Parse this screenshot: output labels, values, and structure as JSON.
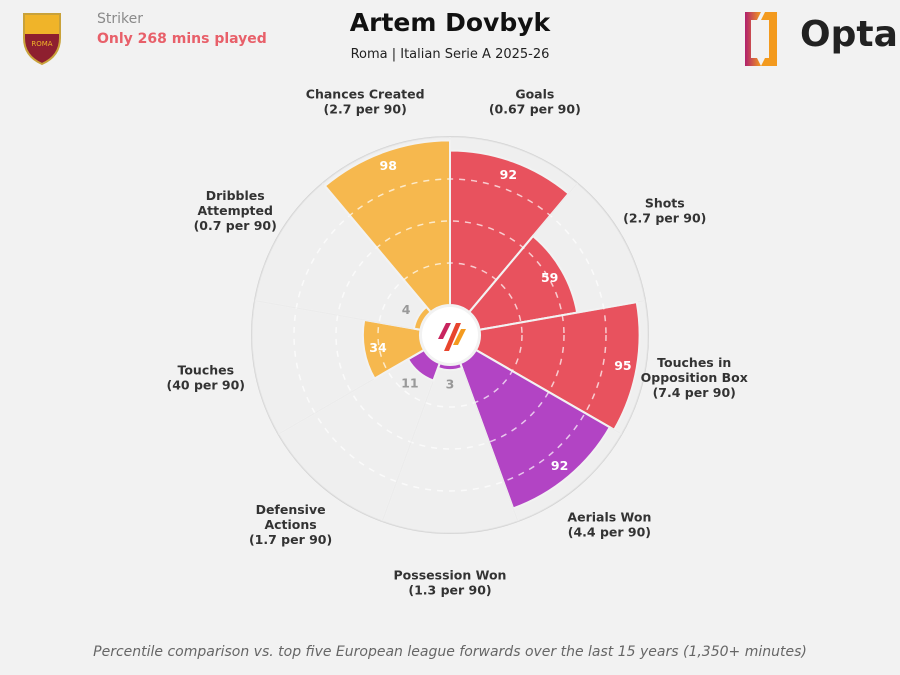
{
  "header": {
    "role": "Striker",
    "minutes_note": "Only 268 mins played",
    "title": "Artem Dovbyk",
    "subtitle": "Roma | Italian Serie A 2025-26",
    "brand": "Opta",
    "crest_text": "ROMA"
  },
  "footer": "Percentile comparison vs. top five European league forwards over the last 15 years (1,350+ minutes)",
  "colors": {
    "attacking": "#e8525e",
    "possession": "#f6b84e",
    "defending": "#b244c4",
    "background": "#f2f2f2"
  },
  "chart_data": {
    "type": "pizza",
    "range": [
      0,
      100
    ],
    "grid": true,
    "categories": [
      {
        "label": [
          "Goals",
          "(0.67 per 90)"
        ],
        "value": 92,
        "group": "attacking"
      },
      {
        "label": [
          "Shots",
          "(2.7 per 90)"
        ],
        "value": 59,
        "group": "attacking"
      },
      {
        "label": [
          "Touches in",
          "Opposition Box",
          "(7.4 per 90)"
        ],
        "value": 95,
        "group": "attacking"
      },
      {
        "label": [
          "Aerials Won",
          "(4.4 per 90)"
        ],
        "value": 92,
        "group": "defending"
      },
      {
        "label": [
          "Possession Won",
          "(1.3 per 90)"
        ],
        "value": 3,
        "group": "defending"
      },
      {
        "label": [
          "Defensive",
          "Actions",
          "(1.7 per 90)"
        ],
        "value": 11,
        "group": "defending"
      },
      {
        "label": [
          "Touches",
          "(40 per 90)"
        ],
        "value": 34,
        "group": "possession"
      },
      {
        "label": [
          "Dribbles",
          "Attempted",
          "(0.7 per 90)"
        ],
        "value": 4,
        "group": "possession"
      },
      {
        "label": [
          "Chances Created",
          "(2.7 per 90)"
        ],
        "value": 98,
        "group": "possession"
      }
    ]
  }
}
